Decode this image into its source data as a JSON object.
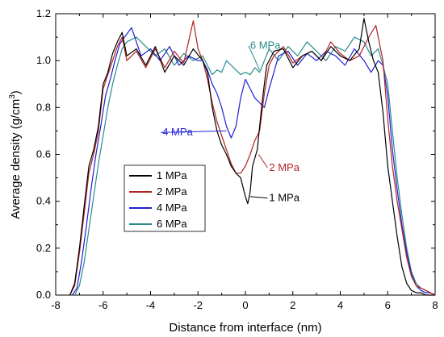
{
  "chart_data": {
    "type": "line",
    "title": "",
    "xlabel": "Distance from interface (nm)",
    "ylabel_main": "Average density (g/cm",
    "ylabel_sup": "3",
    "ylabel_close": ")",
    "xlim": [
      -8,
      8
    ],
    "ylim": [
      0.0,
      1.2
    ],
    "xticks": [
      -8,
      -6,
      -4,
      -2,
      0,
      2,
      4,
      6,
      8
    ],
    "xtick_labels": [
      "-8",
      "-6",
      "-4",
      "-2",
      "0",
      "2",
      "4",
      "6",
      "8"
    ],
    "yticks": [
      0.0,
      0.2,
      0.4,
      0.6,
      0.8,
      1.0,
      1.2
    ],
    "ytick_labels": [
      "0.0",
      "0.2",
      "0.4",
      "0.6",
      "0.8",
      "1.0",
      "1.2"
    ],
    "grid": false,
    "legend_position": "lower-left of center",
    "series": [
      {
        "name": "1 MPa",
        "color": "#000000",
        "x": [
          -7.4,
          -7.2,
          -7.0,
          -6.8,
          -6.6,
          -6.4,
          -6.2,
          -6.0,
          -5.8,
          -5.6,
          -5.4,
          -5.2,
          -5.0,
          -4.6,
          -4.2,
          -3.8,
          -3.4,
          -3.0,
          -2.6,
          -2.2,
          -1.8,
          -1.6,
          -1.4,
          -1.2,
          -1.0,
          -0.8,
          -0.6,
          -0.4,
          -0.2,
          0.0,
          0.1,
          0.2,
          0.3,
          0.5,
          0.7,
          0.9,
          1.2,
          1.6,
          2.0,
          2.4,
          2.8,
          3.2,
          3.6,
          4.0,
          4.4,
          4.8,
          5.0,
          5.2,
          5.4,
          5.6,
          5.8,
          6.0,
          6.2,
          6.4,
          6.6,
          6.8,
          7.0,
          7.2,
          7.4,
          7.6,
          7.8,
          8.0
        ],
        "y": [
          0.0,
          0.05,
          0.2,
          0.38,
          0.55,
          0.62,
          0.72,
          0.9,
          0.95,
          1.03,
          1.08,
          1.12,
          1.02,
          1.05,
          0.98,
          1.06,
          0.95,
          1.02,
          0.98,
          1.05,
          1.0,
          0.95,
          0.8,
          0.7,
          0.64,
          0.6,
          0.55,
          0.52,
          0.5,
          0.42,
          0.39,
          0.44,
          0.55,
          0.62,
          0.82,
          0.98,
          1.04,
          1.05,
          0.97,
          1.02,
          1.04,
          1.0,
          1.06,
          1.02,
          1.0,
          1.05,
          1.18,
          1.08,
          1.0,
          0.95,
          0.78,
          0.55,
          0.4,
          0.25,
          0.12,
          0.05,
          0.02,
          0.01,
          0.01,
          0.0,
          0.0,
          0.0
        ]
      },
      {
        "name": "2 MPa",
        "color": "#b22222",
        "x": [
          -7.4,
          -7.2,
          -7.0,
          -6.8,
          -6.6,
          -6.4,
          -6.2,
          -6.0,
          -5.8,
          -5.6,
          -5.4,
          -5.2,
          -5.0,
          -4.6,
          -4.2,
          -3.8,
          -3.4,
          -3.0,
          -2.6,
          -2.2,
          -2.0,
          -1.8,
          -1.6,
          -1.4,
          -1.2,
          -1.0,
          -0.8,
          -0.6,
          -0.4,
          -0.2,
          0.0,
          0.2,
          0.4,
          0.6,
          0.8,
          1.0,
          1.2,
          1.6,
          2.0,
          2.4,
          2.8,
          3.2,
          3.6,
          4.0,
          4.4,
          4.8,
          5.2,
          5.5,
          5.8,
          6.0,
          6.2,
          6.4,
          6.6,
          6.8,
          7.0,
          7.2,
          7.4,
          7.6,
          7.8,
          8.0
        ],
        "y": [
          0.0,
          0.04,
          0.18,
          0.35,
          0.52,
          0.6,
          0.7,
          0.88,
          0.94,
          1.0,
          1.06,
          1.1,
          1.0,
          1.04,
          0.97,
          1.05,
          0.97,
          1.04,
          0.99,
          1.17,
          1.05,
          1.0,
          0.92,
          0.82,
          0.74,
          0.68,
          0.62,
          0.56,
          0.52,
          0.52,
          0.55,
          0.6,
          0.66,
          0.7,
          0.86,
          0.98,
          1.02,
          1.06,
          0.99,
          1.02,
          1.04,
          1.0,
          1.08,
          1.03,
          1.0,
          1.02,
          1.1,
          1.15,
          1.0,
          0.75,
          0.55,
          0.4,
          0.28,
          0.16,
          0.08,
          0.04,
          0.03,
          0.02,
          0.01,
          0.0
        ]
      },
      {
        "name": "4 MPa",
        "color": "#1f1fd6",
        "x": [
          -7.3,
          -7.1,
          -6.9,
          -6.7,
          -6.5,
          -6.3,
          -6.1,
          -5.9,
          -5.7,
          -5.5,
          -5.3,
          -5.1,
          -4.8,
          -4.4,
          -4.0,
          -3.6,
          -3.2,
          -2.8,
          -2.4,
          -2.0,
          -1.8,
          -1.6,
          -1.4,
          -1.2,
          -1.0,
          -0.8,
          -0.6,
          -0.4,
          -0.2,
          0.0,
          0.2,
          0.4,
          0.6,
          0.8,
          1.0,
          1.4,
          1.8,
          2.2,
          2.6,
          3.0,
          3.4,
          3.8,
          4.2,
          4.6,
          5.0,
          5.3,
          5.6,
          5.8,
          6.0,
          6.2,
          6.4,
          6.6,
          6.8,
          7.0,
          7.2,
          7.4,
          7.6,
          7.8,
          8.0
        ],
        "y": [
          0.0,
          0.03,
          0.15,
          0.3,
          0.46,
          0.6,
          0.72,
          0.85,
          0.92,
          1.0,
          1.07,
          1.1,
          1.14,
          1.02,
          1.05,
          1.0,
          1.06,
          0.98,
          1.02,
          1.0,
          1.0,
          0.96,
          0.9,
          0.86,
          0.8,
          0.72,
          0.67,
          0.72,
          0.84,
          0.92,
          0.88,
          0.84,
          0.82,
          0.8,
          0.88,
          1.02,
          1.04,
          0.98,
          1.03,
          1.0,
          1.04,
          1.02,
          0.98,
          1.05,
          1.0,
          0.95,
          1.0,
          0.98,
          0.85,
          0.62,
          0.45,
          0.3,
          0.18,
          0.09,
          0.04,
          0.02,
          0.01,
          0.01,
          0.0
        ]
      },
      {
        "name": "6 MPa",
        "color": "#2a8a8c",
        "x": [
          -7.2,
          -7.0,
          -6.8,
          -6.6,
          -6.4,
          -6.2,
          -6.0,
          -5.8,
          -5.6,
          -5.4,
          -5.2,
          -5.0,
          -4.6,
          -4.2,
          -3.8,
          -3.4,
          -3.0,
          -2.6,
          -2.2,
          -1.8,
          -1.6,
          -1.4,
          -1.2,
          -1.0,
          -0.8,
          -0.6,
          -0.4,
          -0.2,
          0.0,
          0.2,
          0.4,
          0.6,
          0.8,
          1.0,
          1.4,
          1.8,
          2.2,
          2.6,
          3.0,
          3.4,
          3.8,
          4.2,
          4.6,
          5.0,
          5.3,
          5.6,
          5.8,
          6.0,
          6.2,
          6.4,
          6.6,
          6.8,
          7.0,
          7.2,
          7.4,
          7.6,
          7.8,
          8.0
        ],
        "y": [
          0.0,
          0.04,
          0.14,
          0.28,
          0.42,
          0.56,
          0.68,
          0.8,
          0.9,
          0.98,
          1.05,
          1.08,
          1.1,
          1.06,
          1.02,
          1.05,
          0.98,
          1.03,
          1.0,
          1.02,
          0.98,
          0.94,
          0.96,
          0.95,
          1.0,
          0.98,
          0.96,
          0.94,
          0.95,
          0.94,
          0.97,
          0.95,
          1.0,
          1.05,
          1.0,
          1.06,
          1.02,
          1.08,
          1.04,
          1.0,
          1.06,
          1.04,
          1.1,
          1.08,
          1.02,
          1.05,
          0.98,
          0.9,
          0.7,
          0.5,
          0.34,
          0.2,
          0.1,
          0.05,
          0.03,
          0.02,
          0.01,
          0.0
        ]
      }
    ],
    "annotations": [
      {
        "label": "6 MPa",
        "color": "#2a8a8c",
        "text_x": 0.2,
        "text_y": 1.05,
        "arrow_x": 0.6,
        "arrow_y": 0.96
      },
      {
        "label": "4 MPa",
        "color": "#1f1fd6",
        "text_x": -3.5,
        "text_y": 0.68,
        "arrow_x": -0.8,
        "arrow_y": 0.7
      },
      {
        "label": "2 MPa",
        "color": "#b22222",
        "text_x": 1.0,
        "text_y": 0.53,
        "arrow_x": 0.55,
        "arrow_y": 0.6
      },
      {
        "label": "1 MPa",
        "color": "#000000",
        "text_x": 1.0,
        "text_y": 0.4,
        "arrow_x": 0.2,
        "arrow_y": 0.42
      }
    ]
  }
}
